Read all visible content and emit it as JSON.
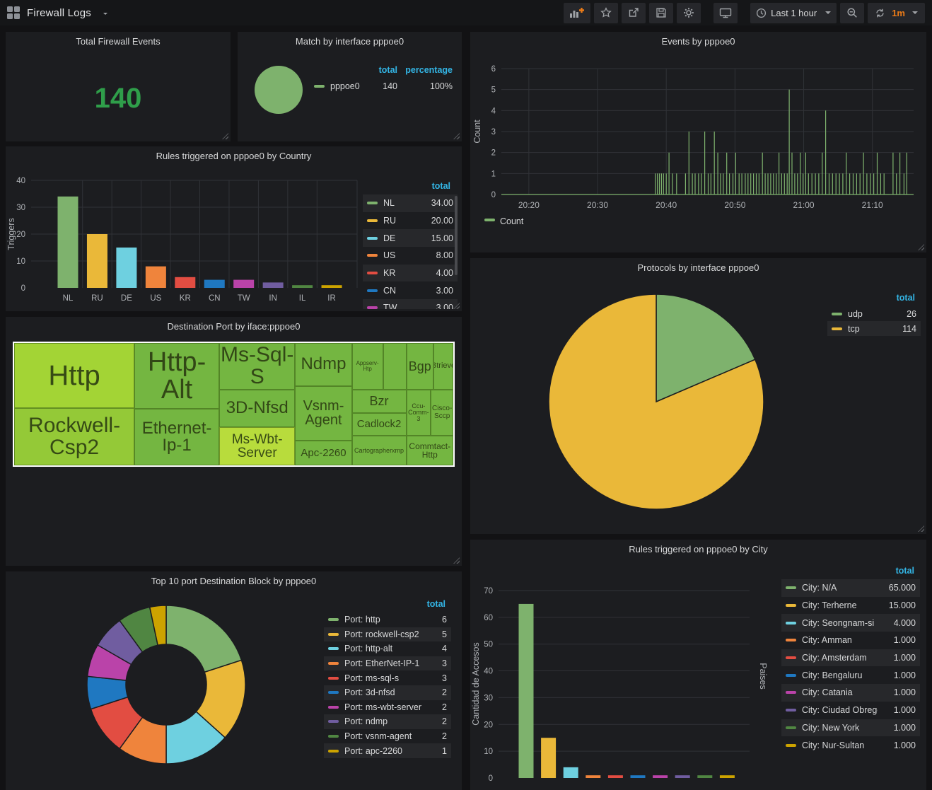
{
  "app": {
    "title": "Firewall Logs",
    "toolbar": {
      "time_range": "Last 1 hour",
      "refresh_interval": "1m",
      "buttons": [
        "add-panel",
        "star",
        "share",
        "save",
        "settings",
        "tv-mode",
        "time-range-picker",
        "zoom-out",
        "refresh"
      ]
    }
  },
  "colors": {
    "accent_blue": "#33b5e5",
    "accent_orange": "#eb7b18",
    "stat_green": "#2f9e4a",
    "grid_line": "#303237",
    "tick_text": "#aeb1b5",
    "legend_text": "#d8d9da",
    "palette": [
      "#7eb26d",
      "#eab839",
      "#6ed0e0",
      "#ef843c",
      "#e24d42",
      "#1f78c1",
      "#ba43a9",
      "#705da0",
      "#508642",
      "#cca300"
    ]
  },
  "chart_data": [
    {
      "id": "total_events",
      "type": "stat",
      "title": "Total Firewall Events",
      "value": "140"
    },
    {
      "id": "match_interface",
      "type": "pie",
      "title": "Match by interface pppoe0",
      "legend_columns": [
        "total",
        "percentage"
      ],
      "series": [
        {
          "name": "pppoe0",
          "value": 140,
          "total": "140",
          "percentage": "100%",
          "color": "#7eb26d"
        }
      ]
    },
    {
      "id": "events_timeline",
      "type": "line",
      "title": "Events by pppoe0",
      "ylabel": "Count",
      "legend": [
        "Count"
      ],
      "series_color": "#7eb26d",
      "ylim": [
        0,
        6
      ],
      "yticks": [
        0,
        1,
        2,
        3,
        4,
        5,
        6
      ],
      "xticks": [
        "20:20",
        "20:30",
        "20:40",
        "20:50",
        "21:00",
        "21:10"
      ],
      "x_window": [
        "20:16",
        "21:16"
      ],
      "baseline": 0,
      "spikes_minutes_after_2000": [
        [
          38.4,
          1
        ],
        [
          38.7,
          1
        ],
        [
          39.0,
          1
        ],
        [
          39.3,
          1
        ],
        [
          39.6,
          1
        ],
        [
          40.0,
          1
        ],
        [
          40.4,
          2
        ],
        [
          40.9,
          1
        ],
        [
          41.5,
          1
        ],
        [
          42.8,
          1
        ],
        [
          43.3,
          3
        ],
        [
          43.8,
          1
        ],
        [
          44.2,
          1
        ],
        [
          44.7,
          1
        ],
        [
          45.1,
          1
        ],
        [
          45.6,
          3
        ],
        [
          46.1,
          1
        ],
        [
          46.5,
          1
        ],
        [
          47.0,
          3
        ],
        [
          47.5,
          2
        ],
        [
          47.9,
          1
        ],
        [
          48.3,
          1
        ],
        [
          48.8,
          2
        ],
        [
          49.2,
          1
        ],
        [
          49.7,
          1
        ],
        [
          50.1,
          2
        ],
        [
          50.6,
          1
        ],
        [
          51.0,
          1
        ],
        [
          51.5,
          1
        ],
        [
          51.9,
          1
        ],
        [
          52.3,
          1
        ],
        [
          52.7,
          1
        ],
        [
          53.1,
          1
        ],
        [
          53.5,
          1
        ],
        [
          54.0,
          2
        ],
        [
          54.4,
          1
        ],
        [
          54.8,
          1
        ],
        [
          55.2,
          1
        ],
        [
          55.6,
          1
        ],
        [
          56.0,
          1
        ],
        [
          56.4,
          2
        ],
        [
          56.8,
          1
        ],
        [
          57.2,
          1
        ],
        [
          57.6,
          1
        ],
        [
          57.9,
          5
        ],
        [
          58.3,
          2
        ],
        [
          58.7,
          1
        ],
        [
          59.1,
          1
        ],
        [
          59.5,
          2
        ],
        [
          59.9,
          1
        ],
        [
          60.3,
          2
        ],
        [
          60.7,
          1
        ],
        [
          61.2,
          1
        ],
        [
          61.7,
          1
        ],
        [
          62.2,
          1
        ],
        [
          62.7,
          2
        ],
        [
          63.2,
          4
        ],
        [
          63.7,
          1
        ],
        [
          64.2,
          1
        ],
        [
          64.7,
          1
        ],
        [
          65.2,
          1
        ],
        [
          65.7,
          1
        ],
        [
          66.2,
          2
        ],
        [
          66.7,
          1
        ],
        [
          67.2,
          1
        ],
        [
          67.7,
          1
        ],
        [
          68.2,
          1
        ],
        [
          68.7,
          2
        ],
        [
          69.2,
          1
        ],
        [
          69.7,
          1
        ],
        [
          70.2,
          1
        ],
        [
          70.7,
          2
        ],
        [
          71.2,
          1
        ],
        [
          71.7,
          1
        ],
        [
          73.0,
          2
        ],
        [
          73.5,
          1
        ],
        [
          74.0,
          2
        ],
        [
          74.6,
          1
        ],
        [
          75.0,
          2
        ]
      ]
    },
    {
      "id": "country_bars",
      "type": "bar",
      "title": "Rules triggered on pppoe0 by Country",
      "ylabel": "Triggers",
      "ylim": [
        0,
        40
      ],
      "yticks": [
        0,
        10,
        20,
        30,
        40
      ],
      "categories": [
        "NL",
        "RU",
        "DE",
        "US",
        "KR",
        "CN",
        "TW",
        "IN",
        "IL",
        "IR"
      ],
      "values": [
        34,
        20,
        15,
        8,
        4,
        3,
        3,
        2,
        1,
        1
      ],
      "legend_header": "total",
      "legend_rows": [
        {
          "label": "NL",
          "value": "34.00"
        },
        {
          "label": "RU",
          "value": "20.00"
        },
        {
          "label": "DE",
          "value": "15.00"
        },
        {
          "label": "US",
          "value": "8.00"
        },
        {
          "label": "KR",
          "value": "4.00"
        },
        {
          "label": "CN",
          "value": "3.00"
        },
        {
          "label": "TW",
          "value": "3.00"
        }
      ]
    },
    {
      "id": "destination_port_treemap",
      "type": "treemap",
      "title": "Destination Port by iface:pppoe0",
      "items": [
        {
          "label": "Http",
          "x": 0,
          "y": 0,
          "w": 27.4,
          "h": 53.2,
          "color": "#a3d435",
          "fs": 40
        },
        {
          "label": "Rockwell-Csp2",
          "x": 0,
          "y": 53.2,
          "w": 27.4,
          "h": 46.8,
          "color": "#94c937",
          "fs": 30
        },
        {
          "label": "Http-Alt",
          "x": 27.4,
          "y": 0,
          "w": 19.3,
          "h": 54,
          "color": "#74b641",
          "fs": 38
        },
        {
          "label": "Ethernet-Ip-1",
          "x": 27.4,
          "y": 54,
          "w": 19.3,
          "h": 46,
          "color": "#74b641",
          "fs": 24
        },
        {
          "label": "Ms-Sql-S",
          "x": 46.7,
          "y": 0,
          "w": 17.3,
          "h": 38,
          "color": "#74b641",
          "fs": 30
        },
        {
          "label": "3D-Nfsd",
          "x": 46.7,
          "y": 38,
          "w": 17.3,
          "h": 31,
          "color": "#74b641",
          "fs": 24
        },
        {
          "label": "Ms-Wbt-Server",
          "x": 46.7,
          "y": 69,
          "w": 17.3,
          "h": 31,
          "color": "#b8dc3c",
          "fs": 19
        },
        {
          "label": "Ndmp",
          "x": 64,
          "y": 0,
          "w": 12.9,
          "h": 35,
          "color": "#74b641",
          "fs": 24
        },
        {
          "label": "Vsnm-Agent",
          "x": 64,
          "y": 35,
          "w": 12.9,
          "h": 45,
          "color": "#74b641",
          "fs": 20
        },
        {
          "label": "Apc-2260",
          "x": 64,
          "y": 80,
          "w": 12.9,
          "h": 20,
          "color": "#74b641",
          "fs": 15
        },
        {
          "label": "Appserv-Htp",
          "x": 76.9,
          "y": 0,
          "w": 7.1,
          "h": 38,
          "color": "#74b641",
          "fs": 8
        },
        {
          "label": "",
          "x": 84,
          "y": 0,
          "w": 5.3,
          "h": 38,
          "color": "#74b641",
          "fs": 10
        },
        {
          "label": "Bgp",
          "x": 89.3,
          "y": 0,
          "w": 6.2,
          "h": 38,
          "color": "#74b641",
          "fs": 18
        },
        {
          "label": "Btrieve",
          "x": 95.5,
          "y": 0,
          "w": 4.5,
          "h": 38,
          "color": "#74b641",
          "fs": 11
        },
        {
          "label": "Bzr",
          "x": 76.9,
          "y": 38,
          "w": 12.4,
          "h": 19,
          "color": "#74b641",
          "fs": 18
        },
        {
          "label": "Cadlock2",
          "x": 76.9,
          "y": 57,
          "w": 12.4,
          "h": 19,
          "color": "#74b641",
          "fs": 15
        },
        {
          "label": "Ccu-Comm-3",
          "x": 89.3,
          "y": 38,
          "w": 5.6,
          "h": 38,
          "color": "#74b641",
          "fs": 9
        },
        {
          "label": "Cisco-Sccp",
          "x": 94.9,
          "y": 38,
          "w": 5.1,
          "h": 38,
          "color": "#74b641",
          "fs": 10
        },
        {
          "label": "Cartographerxmp",
          "x": 76.9,
          "y": 76,
          "w": 12.4,
          "h": 24,
          "color": "#74b641",
          "fs": 9
        },
        {
          "label": "Commtact-Http",
          "x": 89.3,
          "y": 76,
          "w": 10.7,
          "h": 24,
          "color": "#74b641",
          "fs": 12
        }
      ]
    },
    {
      "id": "protocols_pie",
      "type": "pie",
      "title": "Protocols by interface pppoe0",
      "legend_header": "total",
      "series": [
        {
          "name": "udp",
          "value": 26,
          "color": "#7eb26d"
        },
        {
          "name": "tcp",
          "value": 114,
          "color": "#eab839"
        }
      ]
    },
    {
      "id": "top10_ports_donut",
      "type": "donut",
      "title": "Top 10 port Destination Block by pppoe0",
      "legend_header": "total",
      "series": [
        {
          "name": "Port: http",
          "value": 6,
          "color": "#7eb26d"
        },
        {
          "name": "Port: rockwell-csp2",
          "value": 5,
          "color": "#eab839"
        },
        {
          "name": "Port: http-alt",
          "value": 4,
          "color": "#6ed0e0"
        },
        {
          "name": "Port: EtherNet-IP-1",
          "value": 3,
          "color": "#ef843c"
        },
        {
          "name": "Port: ms-sql-s",
          "value": 3,
          "color": "#e24d42"
        },
        {
          "name": "Port: 3d-nfsd",
          "value": 2,
          "color": "#1f78c1"
        },
        {
          "name": "Port: ms-wbt-server",
          "value": 2,
          "color": "#ba43a9"
        },
        {
          "name": "Port: ndmp",
          "value": 2,
          "color": "#705da0"
        },
        {
          "name": "Port: vsnm-agent",
          "value": 2,
          "color": "#508642"
        },
        {
          "name": "Port: apc-2260",
          "value": 1,
          "color": "#cca300"
        }
      ]
    },
    {
      "id": "city_bars",
      "type": "bar",
      "title": "Rules triggered on pppoe0 by City",
      "ylabel": "Cantidad de Accesos",
      "right_label": "Paises",
      "ylim": [
        0,
        70
      ],
      "yticks": [
        0,
        10,
        20,
        30,
        40,
        50,
        60,
        70
      ],
      "values": [
        65,
        15,
        4,
        1,
        1,
        1,
        1,
        1,
        1,
        1
      ],
      "legend_header": "total",
      "legend_rows": [
        {
          "label": "City: N/A",
          "value": "65.000"
        },
        {
          "label": "City: Terherne",
          "value": "15.000"
        },
        {
          "label": "City: Seongnam-si",
          "value": "4.000"
        },
        {
          "label": "City: Amman",
          "value": "1.000"
        },
        {
          "label": "City: Amsterdam",
          "value": "1.000"
        },
        {
          "label": "City: Bengaluru",
          "value": "1.000"
        },
        {
          "label": "City: Catania",
          "value": "1.000"
        },
        {
          "label": "City: Ciudad Obregón",
          "value": "1.000"
        },
        {
          "label": "City: New York",
          "value": "1.000"
        },
        {
          "label": "City: Nur-Sultan",
          "value": "1.000"
        }
      ]
    }
  ]
}
